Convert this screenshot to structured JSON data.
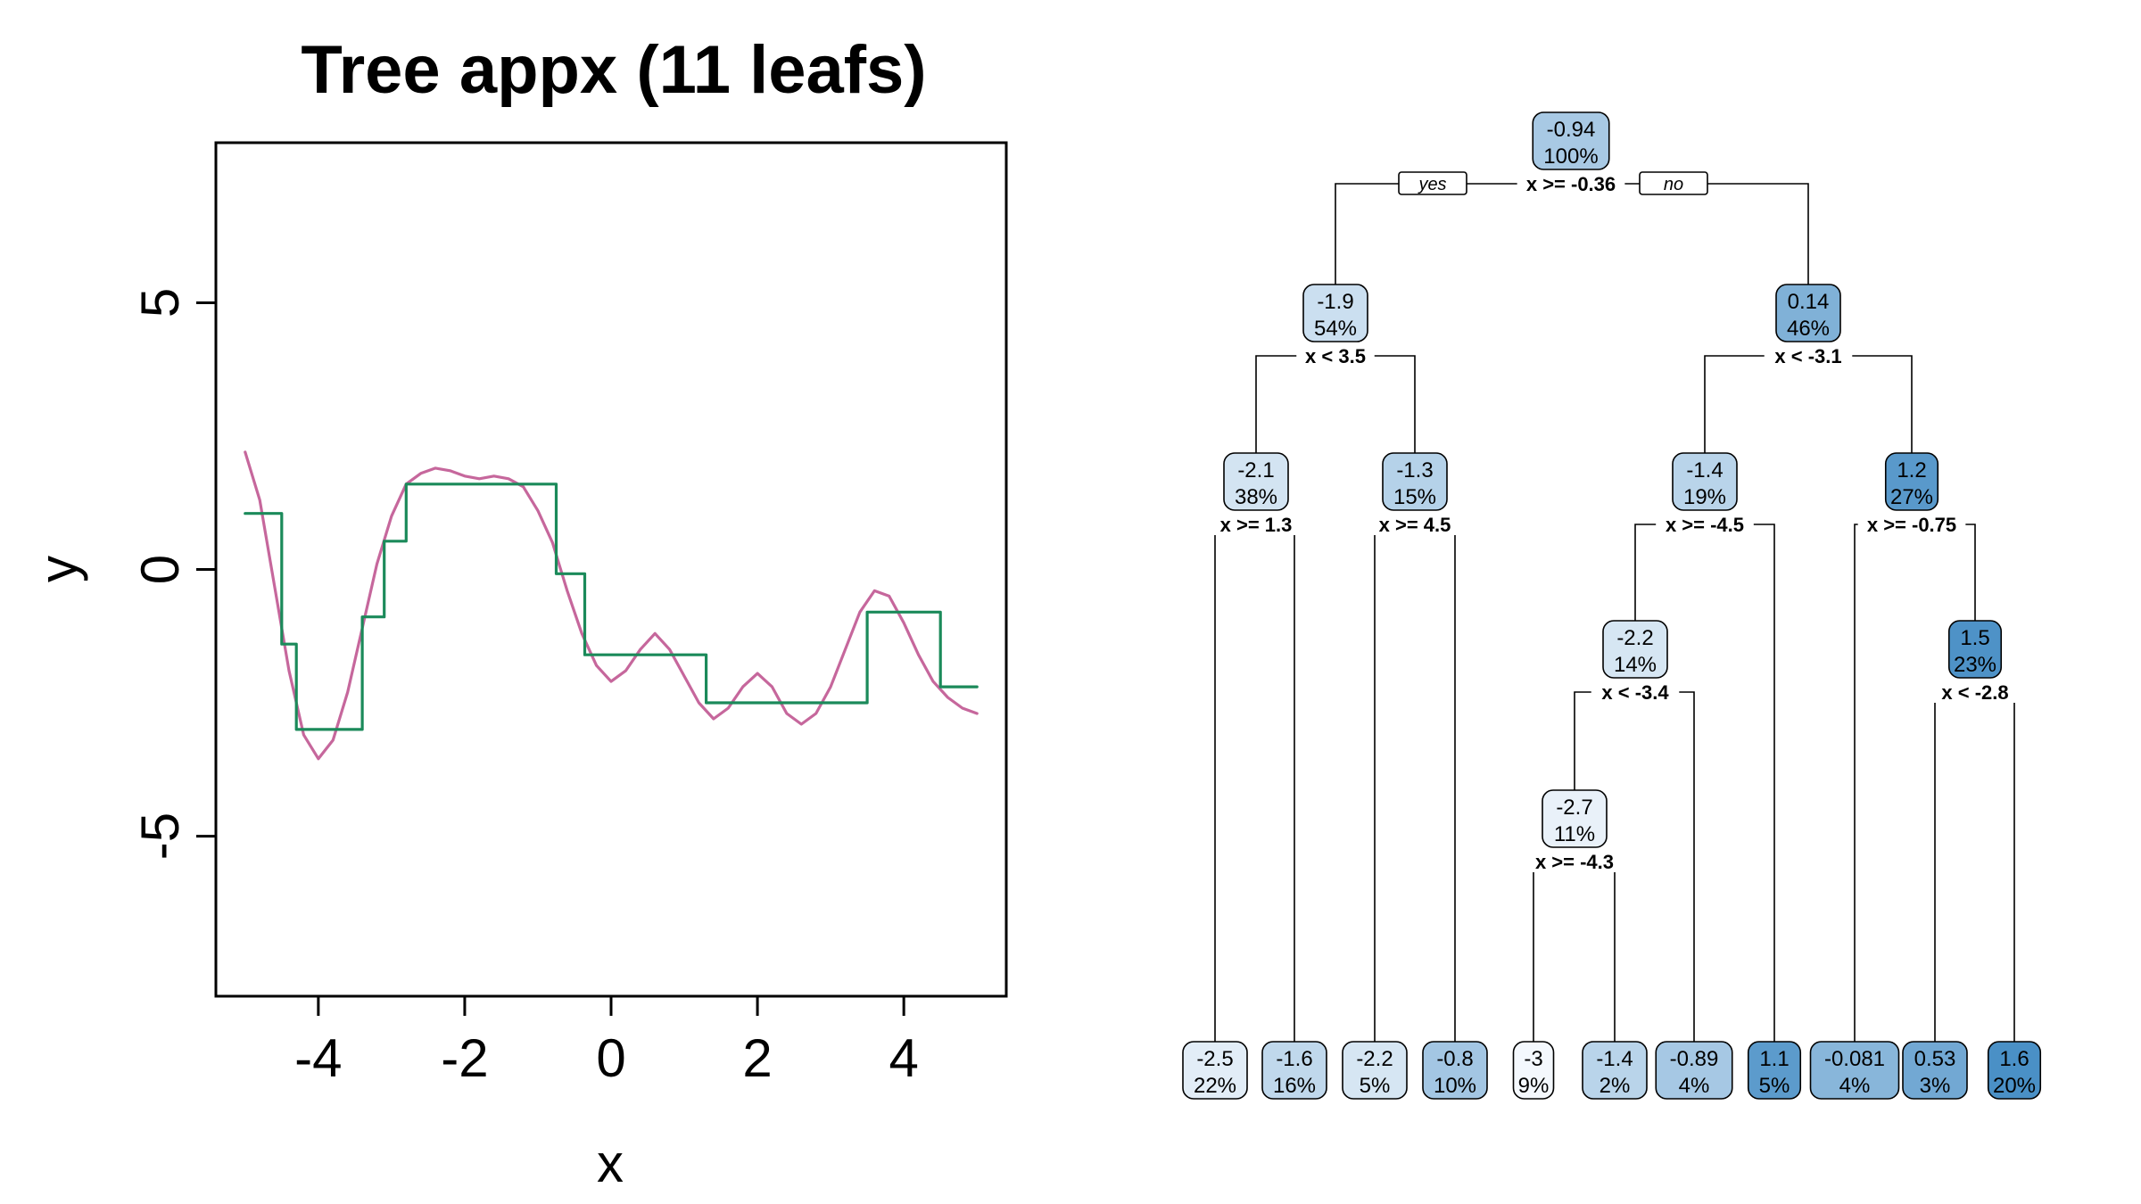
{
  "title": "Tree appx (11 leafs)",
  "chart_data": [
    {
      "type": "line",
      "title": "Tree appx (11 leafs)",
      "xlabel": "x",
      "ylabel": "y",
      "xlim": [
        -5.4,
        5.4
      ],
      "ylim": [
        -8,
        8
      ],
      "x_ticks": [
        -4,
        -2,
        0,
        2,
        4
      ],
      "y_ticks": [
        -5,
        0,
        5
      ],
      "grid": false,
      "series": [
        {
          "color": "#c6679c",
          "description": "smooth true function",
          "x": [
            -5.0,
            -4.8,
            -4.6,
            -4.4,
            -4.2,
            -4.0,
            -3.8,
            -3.6,
            -3.4,
            -3.2,
            -3.0,
            -2.8,
            -2.6,
            -2.4,
            -2.2,
            -2.0,
            -1.8,
            -1.6,
            -1.4,
            -1.2,
            -1.0,
            -0.8,
            -0.6,
            -0.4,
            -0.2,
            0.0,
            0.2,
            0.4,
            0.6,
            0.8,
            1.0,
            1.2,
            1.4,
            1.6,
            1.8,
            2.0,
            2.2,
            2.4,
            2.6,
            2.8,
            3.0,
            3.2,
            3.4,
            3.6,
            3.8,
            4.0,
            4.2,
            4.4,
            4.6,
            4.8,
            5.0
          ],
          "y": [
            2.2,
            1.3,
            -0.3,
            -1.9,
            -3.1,
            -3.55,
            -3.2,
            -2.3,
            -1.1,
            0.1,
            1.0,
            1.6,
            1.8,
            1.9,
            1.85,
            1.75,
            1.7,
            1.75,
            1.7,
            1.55,
            1.1,
            0.5,
            -0.4,
            -1.2,
            -1.8,
            -2.1,
            -1.9,
            -1.5,
            -1.2,
            -1.5,
            -2.0,
            -2.5,
            -2.8,
            -2.6,
            -2.2,
            -1.95,
            -2.2,
            -2.7,
            -2.9,
            -2.7,
            -2.2,
            -1.5,
            -0.8,
            -0.4,
            -0.5,
            -1.0,
            -1.6,
            -2.1,
            -2.4,
            -2.6,
            -2.7
          ]
        },
        {
          "color": "#1b8a5a",
          "description": "regression tree step approximation",
          "x": [
            -5.0,
            -4.5,
            -4.5,
            -4.3,
            -4.3,
            -3.4,
            -3.4,
            -3.1,
            -3.1,
            -2.8,
            -2.8,
            -0.75,
            -0.75,
            -0.36,
            -0.36,
            1.3,
            1.3,
            3.5,
            3.5,
            4.5,
            4.5,
            5.0
          ],
          "y": [
            1.05,
            1.05,
            -1.4,
            -1.4,
            -3.0,
            -3.0,
            -0.89,
            -0.89,
            0.53,
            0.53,
            1.6,
            1.6,
            -0.081,
            -0.081,
            -1.6,
            -1.6,
            -2.5,
            -2.5,
            -0.8,
            -0.8,
            -2.2,
            -2.2
          ]
        }
      ]
    },
    {
      "type": "tree",
      "colors": {
        "low": "#f4f8fd",
        "high": "#4a90c6",
        "border": "#000000",
        "edge": "#000000"
      },
      "yes_label": "yes",
      "no_label": "no",
      "value_range": [
        -3.0,
        1.6
      ],
      "nodes": [
        {
          "id": "n1",
          "value": -0.94,
          "text": "-0.94",
          "pct": "100%",
          "split": "x >= -0.36"
        },
        {
          "id": "n2",
          "value": -1.9,
          "text": "-1.9",
          "pct": "54%",
          "split": "x < 3.5",
          "parent": "n1"
        },
        {
          "id": "n3",
          "value": 0.14,
          "text": "0.14",
          "pct": "46%",
          "split": "x < -3.1",
          "parent": "n1"
        },
        {
          "id": "n4",
          "value": -2.1,
          "text": "-2.1",
          "pct": "38%",
          "split": "x >= 1.3",
          "parent": "n2"
        },
        {
          "id": "n5",
          "value": -1.3,
          "text": "-1.3",
          "pct": "15%",
          "split": "x >= 4.5",
          "parent": "n2"
        },
        {
          "id": "n6",
          "value": -1.4,
          "text": "-1.4",
          "pct": "19%",
          "split": "x >= -4.5",
          "parent": "n3"
        },
        {
          "id": "n7",
          "value": 1.2,
          "text": "1.2",
          "pct": "27%",
          "split": "x >= -0.75",
          "parent": "n3"
        },
        {
          "id": "n12",
          "value": -2.2,
          "text": "-2.2",
          "pct": "14%",
          "split": "x < -3.4",
          "parent": "n6"
        },
        {
          "id": "n15",
          "value": 1.5,
          "text": "1.5",
          "pct": "23%",
          "split": "x < -2.8",
          "parent": "n7"
        },
        {
          "id": "n24",
          "value": -2.7,
          "text": "-2.7",
          "pct": "11%",
          "split": "x >= -4.3",
          "parent": "n12"
        },
        {
          "id": "l1",
          "value": -2.5,
          "text": "-2.5",
          "pct": "22%",
          "parent": "n4"
        },
        {
          "id": "l2",
          "value": -1.6,
          "text": "-1.6",
          "pct": "16%",
          "parent": "n4"
        },
        {
          "id": "l3",
          "value": -2.2,
          "text": "-2.2",
          "pct": "5%",
          "parent": "n5"
        },
        {
          "id": "l4",
          "value": -0.8,
          "text": "-0.8",
          "pct": "10%",
          "parent": "n5"
        },
        {
          "id": "l5",
          "value": -3.0,
          "text": "-3",
          "pct": "9%",
          "parent": "n24"
        },
        {
          "id": "l6",
          "value": -1.4,
          "text": "-1.4",
          "pct": "2%",
          "parent": "n24"
        },
        {
          "id": "l7",
          "value": -0.89,
          "text": "-0.89",
          "pct": "4%",
          "parent": "n12"
        },
        {
          "id": "l8",
          "value": 1.1,
          "text": "1.1",
          "pct": "5%",
          "parent": "n6"
        },
        {
          "id": "l9",
          "value": -0.081,
          "text": "-0.081",
          "pct": "4%",
          "parent": "n7"
        },
        {
          "id": "l10",
          "value": 0.53,
          "text": "0.53",
          "pct": "3%",
          "parent": "n15"
        },
        {
          "id": "l11",
          "value": 1.6,
          "text": "1.6",
          "pct": "20%",
          "parent": "n15"
        }
      ]
    }
  ]
}
